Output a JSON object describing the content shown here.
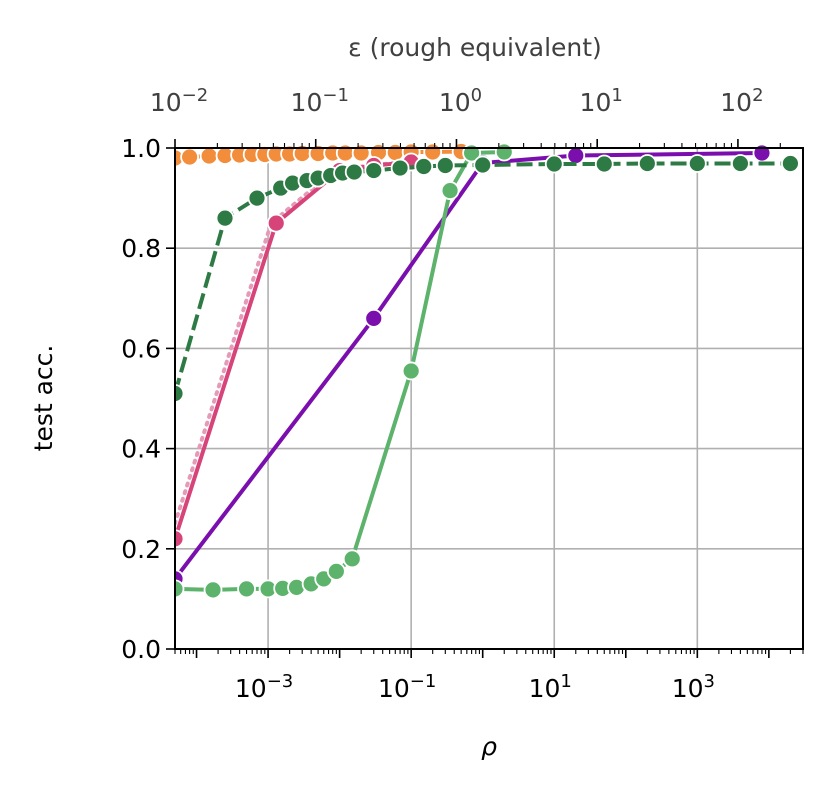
{
  "chart_data": {
    "type": "line",
    "xlabel": "ρ",
    "ylabel": "test acc.",
    "top_xlabel": "ε (rough equivalent)",
    "x_scale": "log",
    "x_range": [
      5e-05,
      30000
    ],
    "ylim": [
      0,
      1
    ],
    "grid": true,
    "x_ticks": [
      {
        "value": 0.001,
        "base": "10",
        "exp": "−3"
      },
      {
        "value": 0.1,
        "base": "10",
        "exp": "−1"
      },
      {
        "value": 10,
        "base": "10",
        "exp": "1"
      },
      {
        "value": 1000,
        "base": "10",
        "exp": "3"
      }
    ],
    "y_ticks": [
      {
        "value": 0.0,
        "label": "0.0"
      },
      {
        "value": 0.2,
        "label": "0.2"
      },
      {
        "value": 0.4,
        "label": "0.4"
      },
      {
        "value": 0.6,
        "label": "0.6"
      },
      {
        "value": 0.8,
        "label": "0.8"
      },
      {
        "value": 1.0,
        "label": "1.0"
      }
    ],
    "top_axis": {
      "scale": "log",
      "range": [
        0.01,
        290
      ],
      "ticks": [
        {
          "value": 0.01,
          "base": "10",
          "exp": "−2"
        },
        {
          "value": 0.1,
          "base": "10",
          "exp": "−1"
        },
        {
          "value": 1,
          "base": "10",
          "exp": "0"
        },
        {
          "value": 10,
          "base": "10",
          "exp": "1"
        },
        {
          "value": 100,
          "base": "10",
          "exp": "2"
        }
      ]
    },
    "series": [
      {
        "color": "#f28e3b",
        "line_style": "dashed",
        "points": [
          [
            5e-05,
            0.98
          ],
          [
            8e-05,
            0.982
          ],
          [
            0.00015,
            0.984
          ],
          [
            0.00025,
            0.985
          ],
          [
            0.0004,
            0.986
          ],
          [
            0.0006,
            0.987
          ],
          [
            0.0009,
            0.987
          ],
          [
            0.0013,
            0.988
          ],
          [
            0.002,
            0.988
          ],
          [
            0.003,
            0.989
          ],
          [
            0.005,
            0.989
          ],
          [
            0.008,
            0.99
          ],
          [
            0.012,
            0.99
          ],
          [
            0.02,
            0.99
          ],
          [
            0.035,
            0.991
          ],
          [
            0.06,
            0.991
          ],
          [
            0.1,
            0.992
          ],
          [
            0.2,
            0.992
          ],
          [
            0.5,
            0.993
          ]
        ]
      },
      {
        "color": "#d6447a",
        "line_style": "solid",
        "companion_dotted_color": "#e59ab8",
        "points": [
          [
            5e-05,
            0.22
          ],
          [
            0.0013,
            0.85
          ],
          [
            0.01,
            0.955
          ],
          [
            0.03,
            0.965
          ],
          [
            0.1,
            0.972
          ]
        ]
      },
      {
        "color": "#7b0fae",
        "line_style": "solid",
        "points": [
          [
            5e-05,
            0.14
          ],
          [
            0.03,
            0.66
          ],
          [
            1.0,
            0.97
          ],
          [
            20,
            0.985
          ],
          [
            8000,
            0.99
          ]
        ]
      },
      {
        "color": "#5db36b",
        "line_style": "solid",
        "points": [
          [
            5e-05,
            0.12
          ],
          [
            0.00017,
            0.118
          ],
          [
            0.0005,
            0.12
          ],
          [
            0.001,
            0.12
          ],
          [
            0.0016,
            0.121
          ],
          [
            0.0025,
            0.123
          ],
          [
            0.004,
            0.13
          ],
          [
            0.006,
            0.14
          ],
          [
            0.009,
            0.155
          ],
          [
            0.015,
            0.18
          ],
          [
            0.1,
            0.555
          ],
          [
            0.35,
            0.915
          ],
          [
            0.7,
            0.99
          ],
          [
            2,
            0.992
          ]
        ]
      },
      {
        "color": "#2e7a45",
        "line_style": "dashed",
        "points": [
          [
            5e-05,
            0.51
          ],
          [
            0.00025,
            0.86
          ],
          [
            0.0007,
            0.9
          ],
          [
            0.0015,
            0.92
          ],
          [
            0.0022,
            0.93
          ],
          [
            0.0035,
            0.935
          ],
          [
            0.005,
            0.94
          ],
          [
            0.0075,
            0.945
          ],
          [
            0.011,
            0.95
          ],
          [
            0.016,
            0.952
          ],
          [
            0.03,
            0.955
          ],
          [
            0.07,
            0.96
          ],
          [
            0.15,
            0.963
          ],
          [
            0.3,
            0.965
          ],
          [
            1.0,
            0.966
          ],
          [
            10,
            0.968
          ],
          [
            50,
            0.968
          ],
          [
            200,
            0.969
          ],
          [
            1000,
            0.969
          ],
          [
            4000,
            0.969
          ],
          [
            20000,
            0.969
          ]
        ]
      }
    ]
  }
}
